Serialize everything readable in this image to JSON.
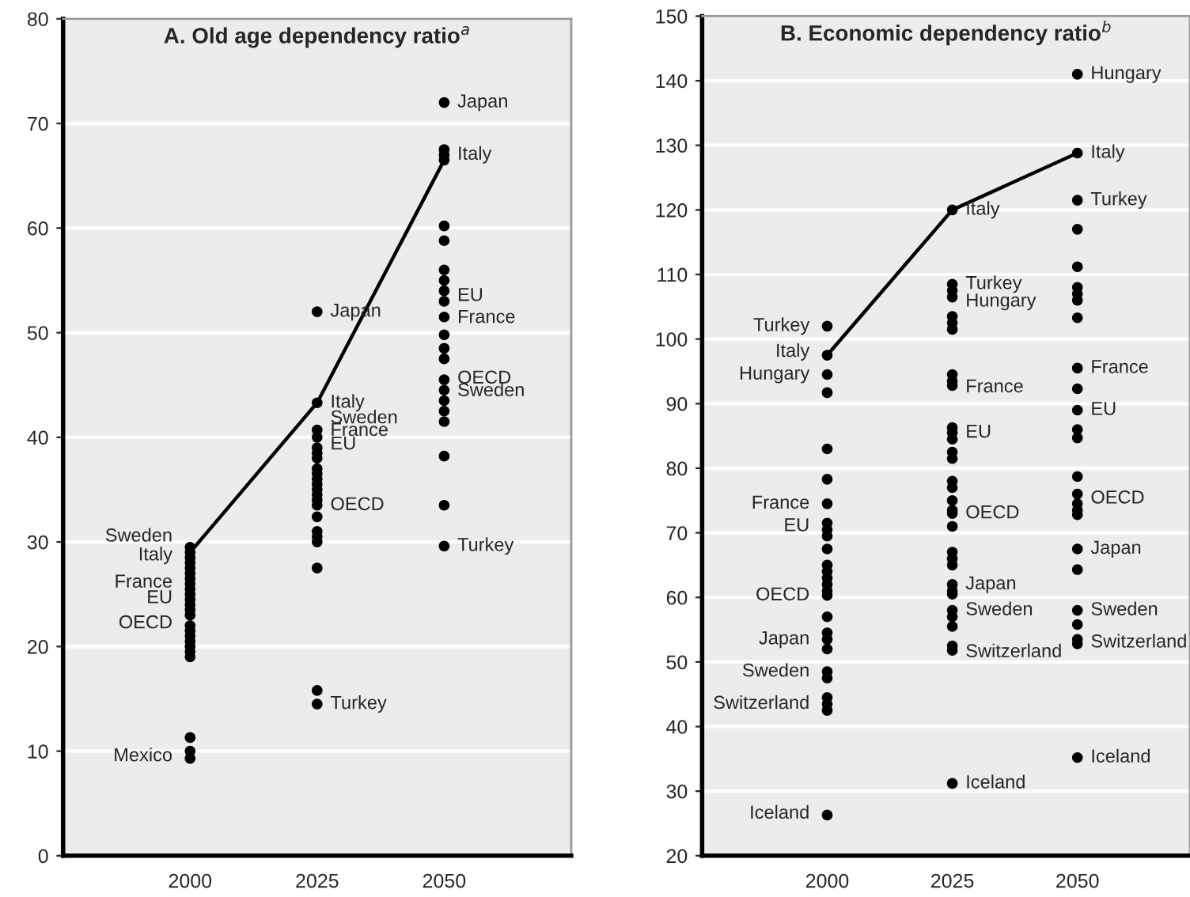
{
  "chart_data": [
    {
      "type": "scatter",
      "title": "A. Old age dependency ratio$^{a}$",
      "grid": "y",
      "xlim": [
        1975,
        2075
      ],
      "xticks": [
        2000,
        2025,
        2050
      ],
      "ylim": [
        0,
        80
      ],
      "yticks": [
        0,
        10,
        20,
        30,
        40,
        50,
        60,
        70,
        80
      ],
      "series": [
        {
          "color": "#000000",
          "marker": "circle",
          "x": [
            2000,
            2000,
            2000,
            2000,
            2000,
            2000,
            2000,
            2000,
            2000,
            2000,
            2000,
            2000,
            2000,
            2000,
            2000,
            2000,
            2000,
            2000,
            2000,
            2000,
            2000,
            2000,
            2000,
            2000,
            2025,
            2025,
            2025,
            2025,
            2025,
            2025,
            2025,
            2025,
            2025,
            2025,
            2025,
            2025,
            2025,
            2025,
            2025,
            2025,
            2025,
            2025,
            2025,
            2025,
            2025,
            2025,
            2050,
            2050,
            2050,
            2050,
            2050,
            2050,
            2050,
            2050,
            2050,
            2050,
            2050,
            2050,
            2050,
            2050,
            2050,
            2050,
            2050,
            2050,
            2050,
            2050,
            2050,
            2050
          ],
          "values": [
            29.5,
            29,
            28.5,
            28,
            27.5,
            27,
            26.5,
            26,
            25.5,
            25,
            24.5,
            24,
            23.5,
            23,
            22,
            21.5,
            21,
            20.5,
            20,
            19.5,
            19,
            11.3,
            10,
            9.3,
            52,
            43.3,
            40.7,
            40,
            39,
            38.5,
            38,
            36.5,
            36,
            35.5,
            35,
            34.5,
            34,
            33.5,
            32.4,
            31,
            30.5,
            30,
            27.5,
            15.8,
            14.5,
            37,
            72,
            67.5,
            67,
            66.5,
            60.2,
            58.8,
            56,
            55,
            54,
            53,
            51.5,
            49.8,
            48.5,
            47.5,
            45.5,
            44.5,
            43.5,
            42.5,
            41.5,
            38.2,
            33.5,
            29.6
          ]
        },
        {
          "type": "line",
          "color": "#000000",
          "marker": "none",
          "x": [
            2000,
            2025,
            2050
          ],
          "values": [
            29,
            43.3,
            66.5
          ]
        }
      ],
      "annotations": [
        {
          "text": "Sweden",
          "x": 2000,
          "y": 30.5
        },
        {
          "text": "Italy",
          "x": 2000,
          "y": 28.7
        },
        {
          "text": "France",
          "x": 2000,
          "y": 26.1
        },
        {
          "text": "EU",
          "x": 2000,
          "y": 24.6
        },
        {
          "text": "OECD",
          "x": 2000,
          "y": 22.2
        },
        {
          "text": "Mexico",
          "x": 2000,
          "y": 9.5
        },
        {
          "text": "Japan",
          "x": 2025,
          "y": 52
        },
        {
          "text": "Italy",
          "x": 2025,
          "y": 43.3
        },
        {
          "text": "Sweden",
          "x": 2025,
          "y": 41.8
        },
        {
          "text": "France",
          "x": 2025,
          "y": 40.6
        },
        {
          "text": "EU",
          "x": 2025,
          "y": 39.3
        },
        {
          "text": "OECD",
          "x": 2025,
          "y": 33.5
        },
        {
          "text": "Turkey",
          "x": 2025,
          "y": 14.5
        },
        {
          "text": "Japan",
          "x": 2050,
          "y": 72
        },
        {
          "text": "Italy",
          "x": 2050,
          "y": 67
        },
        {
          "text": "EU",
          "x": 2050,
          "y": 53.5
        },
        {
          "text": "France",
          "x": 2050,
          "y": 51.4
        },
        {
          "text": "OECD",
          "x": 2050,
          "y": 45.6
        },
        {
          "text": "Sweden",
          "x": 2050,
          "y": 44.4
        },
        {
          "text": "Turkey",
          "x": 2050,
          "y": 29.6
        }
      ]
    },
    {
      "type": "scatter",
      "title": "B. Economic dependency ratio$^{b}$",
      "grid": "y",
      "xlim": [
        1975,
        2072.5
      ],
      "xticks": [
        2000,
        2025,
        2050
      ],
      "ylim": [
        20,
        150
      ],
      "yticks": [
        20,
        30,
        40,
        50,
        60,
        70,
        80,
        90,
        100,
        110,
        120,
        130,
        140,
        150
      ],
      "series": [
        {
          "color": "#000000",
          "marker": "circle",
          "x": [
            2000,
            2000,
            2000,
            2000,
            2000,
            2000,
            2000,
            2000,
            2000,
            2000,
            2000,
            2000,
            2000,
            2000,
            2000,
            2000,
            2000,
            2000,
            2000,
            2000,
            2000,
            2000,
            2000,
            2000,
            2000,
            2000,
            2000,
            2025,
            2025,
            2025,
            2025,
            2025,
            2025,
            2025,
            2025,
            2025,
            2025,
            2025,
            2025,
            2025,
            2025,
            2025,
            2025,
            2025,
            2025,
            2025,
            2025,
            2025,
            2025,
            2025,
            2025,
            2025,
            2025,
            2025,
            2025,
            2025,
            2025,
            2025,
            2025,
            2025,
            2050,
            2050,
            2050,
            2050,
            2050,
            2050,
            2050,
            2050,
            2050,
            2050,
            2050,
            2050,
            2050,
            2050,
            2050,
            2050,
            2050,
            2050,
            2050,
            2050,
            2050,
            2050,
            2050,
            2050,
            2050,
            2050
          ],
          "values": [
            102,
            97.5,
            94.5,
            91.7,
            83,
            78.3,
            74.5,
            71.5,
            70.5,
            69.5,
            67.5,
            65,
            64,
            63,
            62,
            61,
            60.3,
            57,
            54.5,
            53.5,
            52,
            48.5,
            47.5,
            44.5,
            43.5,
            42.5,
            26.3,
            120,
            108.5,
            107.5,
            106.5,
            103.5,
            102.5,
            101.5,
            94.5,
            93.5,
            92.8,
            86.3,
            85.5,
            84.5,
            82.5,
            81.5,
            78,
            77,
            75,
            73.5,
            73,
            71,
            67,
            66,
            65,
            62,
            61,
            60.5,
            58,
            57,
            55.5,
            52.5,
            51.8,
            31.2,
            141,
            128.8,
            121.5,
            117,
            111.2,
            108,
            107,
            106,
            103.3,
            95.5,
            92.3,
            89,
            86,
            84.7,
            78.7,
            76,
            74.5,
            73.5,
            72.8,
            67.5,
            64.3,
            58,
            55.8,
            53.5,
            52.8,
            35.2
          ]
        },
        {
          "type": "line",
          "color": "#000000",
          "marker": "none",
          "x": [
            2000,
            2025,
            2050
          ],
          "values": [
            97.5,
            120,
            128.8
          ]
        }
      ],
      "annotations": [
        {
          "text": "Turkey",
          "x": 2000,
          "y": 102
        },
        {
          "text": "Italy",
          "x": 2000,
          "y": 98
        },
        {
          "text": "Hungary",
          "x": 2000,
          "y": 94.5
        },
        {
          "text": "France",
          "x": 2000,
          "y": 74.5
        },
        {
          "text": "EU",
          "x": 2000,
          "y": 71
        },
        {
          "text": "OECD",
          "x": 2000,
          "y": 60.3
        },
        {
          "text": "Japan",
          "x": 2000,
          "y": 53.5
        },
        {
          "text": "Sweden",
          "x": 2000,
          "y": 48.5
        },
        {
          "text": "Switzerland",
          "x": 2000,
          "y": 43.5
        },
        {
          "text": "Iceland",
          "x": 2000,
          "y": 26.5
        },
        {
          "text": "Italy",
          "x": 2025,
          "y": 120
        },
        {
          "text": "Turkey",
          "x": 2025,
          "y": 108.5
        },
        {
          "text": "Hungary",
          "x": 2025,
          "y": 105.8
        },
        {
          "text": "France",
          "x": 2025,
          "y": 92.5
        },
        {
          "text": "EU",
          "x": 2025,
          "y": 85.5
        },
        {
          "text": "OECD",
          "x": 2025,
          "y": 73
        },
        {
          "text": "Japan",
          "x": 2025,
          "y": 62
        },
        {
          "text": "Sweden",
          "x": 2025,
          "y": 58
        },
        {
          "text": "Switzerland",
          "x": 2025,
          "y": 51.5
        },
        {
          "text": "Iceland",
          "x": 2025,
          "y": 31.2
        },
        {
          "text": "Hungary",
          "x": 2050,
          "y": 141
        },
        {
          "text": "Italy",
          "x": 2050,
          "y": 128.8
        },
        {
          "text": "Turkey",
          "x": 2050,
          "y": 121.5
        },
        {
          "text": "France",
          "x": 2050,
          "y": 95.5
        },
        {
          "text": "EU",
          "x": 2050,
          "y": 89
        },
        {
          "text": "OECD",
          "x": 2050,
          "y": 75.3
        },
        {
          "text": "Japan",
          "x": 2050,
          "y": 67.5
        },
        {
          "text": "Sweden",
          "x": 2050,
          "y": 58
        },
        {
          "text": "Switzerland",
          "x": 2050,
          "y": 53
        },
        {
          "text": "Iceland",
          "x": 2050,
          "y": 35.2
        }
      ]
    }
  ]
}
